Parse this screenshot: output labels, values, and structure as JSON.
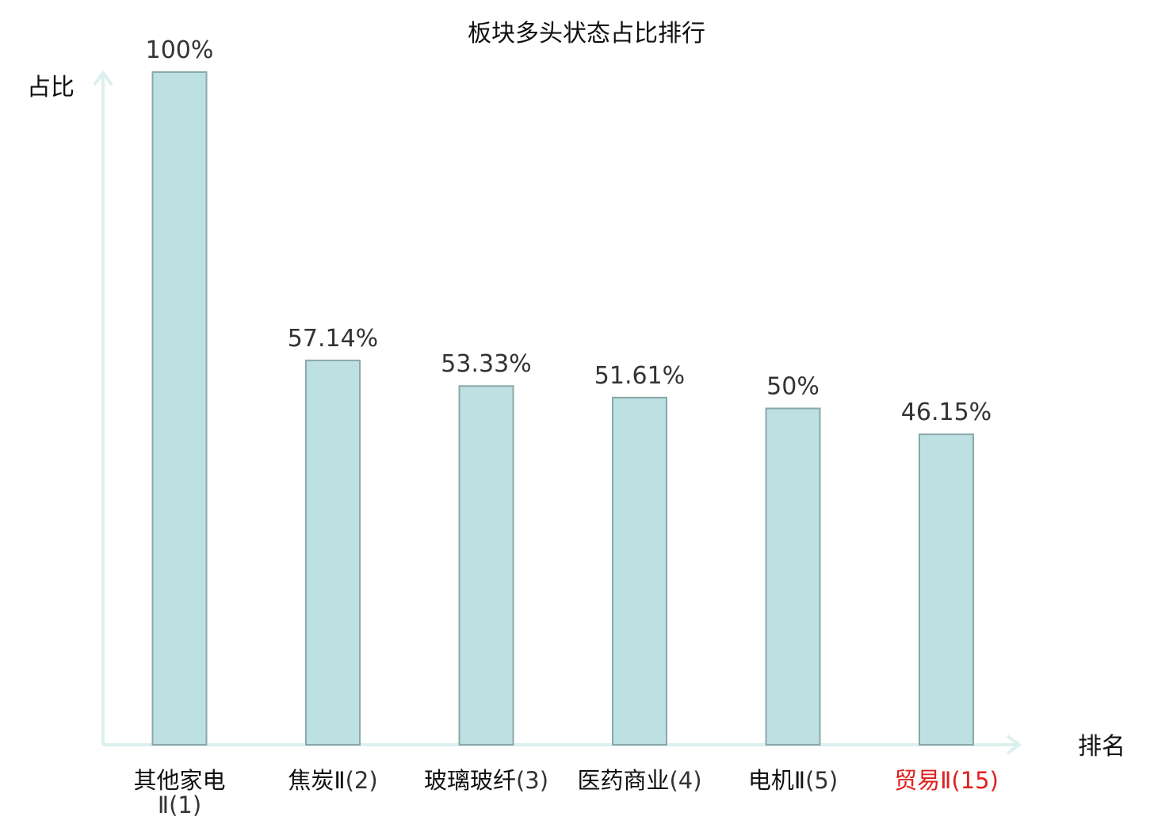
{
  "chart_data": {
    "type": "bar",
    "title": "板块多头状态占比排行",
    "ylabel": "占比",
    "xlabel": "排名",
    "ylim": [
      0,
      100
    ],
    "grid": false,
    "legend": "none",
    "categories": [
      {
        "name": "其他家电Ⅱ",
        "rank": "(1)",
        "highlight": false
      },
      {
        "name": "焦炭Ⅱ",
        "rank": "(2)",
        "highlight": false
      },
      {
        "name": "玻璃玻纤",
        "rank": "(3)",
        "highlight": false
      },
      {
        "name": "医药商业",
        "rank": "(4)",
        "highlight": false
      },
      {
        "name": "电机Ⅱ",
        "rank": "(5)",
        "highlight": false
      },
      {
        "name": "贸易Ⅱ",
        "rank": "(15)",
        "highlight": true
      }
    ],
    "values": [
      100,
      57.14,
      53.33,
      51.61,
      50,
      46.15
    ],
    "value_labels": [
      "100%",
      "57.14%",
      "53.33%",
      "51.61%",
      "50%",
      "46.15%"
    ]
  },
  "colors": {
    "bar_fill": "#bde0e3",
    "bar_stroke": "#8aa8aa",
    "axis": "#dcf0ee",
    "label_normal": "#111111",
    "label_highlight": "#e02020",
    "rank_normal": "#333333"
  }
}
